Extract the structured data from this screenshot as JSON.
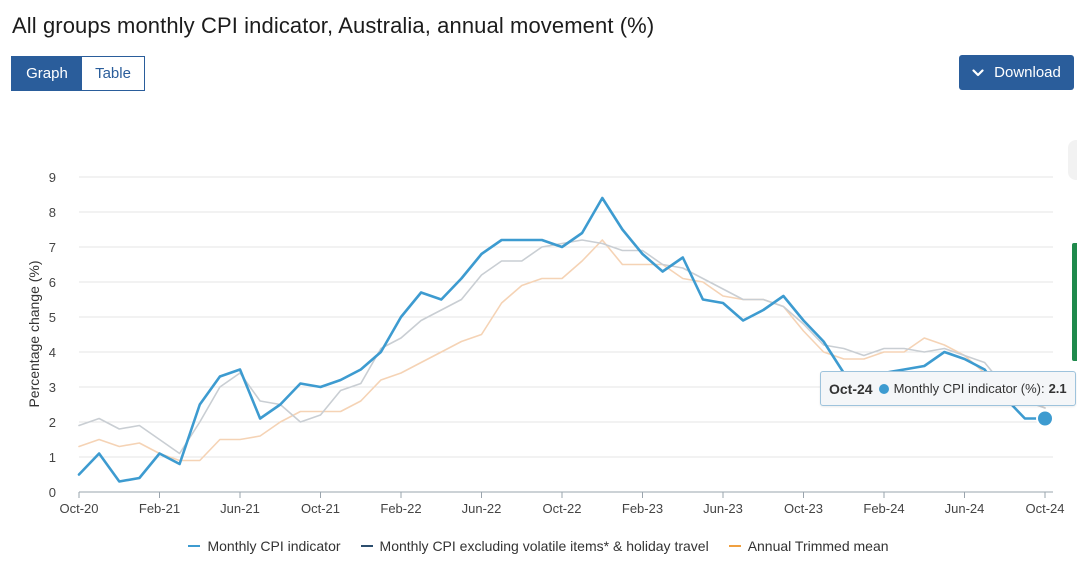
{
  "page": {
    "title": "All groups monthly CPI indicator, Australia, annual movement (%)"
  },
  "view_toggle": {
    "graph_label": "Graph",
    "table_label": "Table",
    "active": "Graph"
  },
  "download": {
    "label": "Download",
    "icon": "chevron-down-icon"
  },
  "tooltip": {
    "x": "Oct-24",
    "series": "Monthly CPI indicator (%):",
    "value": "2.1"
  },
  "colors": {
    "cpi": "#3d9bd0",
    "excl": "#c9ced3",
    "trimmed": "#f5d3b5",
    "accent": "#2a5d9b",
    "legend_cpi": "#3d9bd0",
    "legend_excl": "#2c4e6e",
    "legend_trimmed": "#f0a040"
  },
  "chart_data": {
    "type": "line",
    "title": "All groups monthly CPI indicator, Australia, annual movement (%)",
    "ylabel": "Percentage change (%)",
    "xlabel": "",
    "ylim": [
      0,
      9
    ],
    "yticks": [
      0,
      1,
      2,
      3,
      4,
      5,
      6,
      7,
      8,
      9
    ],
    "grid": true,
    "legend_position": "bottom",
    "x": [
      "Oct-20",
      "Nov-20",
      "Dec-20",
      "Jan-21",
      "Feb-21",
      "Mar-21",
      "Apr-21",
      "May-21",
      "Jun-21",
      "Jul-21",
      "Aug-21",
      "Sep-21",
      "Oct-21",
      "Nov-21",
      "Dec-21",
      "Jan-22",
      "Feb-22",
      "Mar-22",
      "Apr-22",
      "May-22",
      "Jun-22",
      "Jul-22",
      "Aug-22",
      "Sep-22",
      "Oct-22",
      "Nov-22",
      "Dec-22",
      "Jan-23",
      "Feb-23",
      "Mar-23",
      "Apr-23",
      "May-23",
      "Jun-23",
      "Jul-23",
      "Aug-23",
      "Sep-23",
      "Oct-23",
      "Nov-23",
      "Dec-23",
      "Jan-24",
      "Feb-24",
      "Mar-24",
      "Apr-24",
      "May-24",
      "Jun-24",
      "Jul-24",
      "Aug-24",
      "Sep-24",
      "Oct-24"
    ],
    "xticks": [
      "Oct-20",
      "Feb-21",
      "Jun-21",
      "Oct-21",
      "Feb-22",
      "Jun-22",
      "Oct-22",
      "Feb-23",
      "Jun-23",
      "Oct-23",
      "Feb-24",
      "Jun-24",
      "Oct-24"
    ],
    "series": [
      {
        "name": "Monthly CPI indicator",
        "values": [
          0.5,
          1.1,
          0.3,
          0.4,
          1.1,
          0.8,
          2.5,
          3.3,
          3.5,
          2.1,
          2.5,
          3.1,
          3.0,
          3.2,
          3.5,
          4.0,
          5.0,
          5.7,
          5.5,
          6.1,
          6.8,
          7.2,
          7.2,
          7.2,
          7.0,
          7.4,
          8.4,
          7.5,
          6.8,
          6.3,
          6.7,
          5.5,
          5.4,
          4.9,
          5.2,
          5.6,
          4.9,
          4.3,
          3.4,
          3.4,
          3.4,
          3.5,
          3.6,
          4.0,
          3.8,
          3.5,
          2.7,
          2.1,
          2.1
        ]
      },
      {
        "name": "Monthly CPI excluding volatile items* & holiday travel",
        "values": [
          1.9,
          2.1,
          1.8,
          1.9,
          1.5,
          1.1,
          2.0,
          3.0,
          3.4,
          2.6,
          2.5,
          2.0,
          2.2,
          2.9,
          3.1,
          4.1,
          4.4,
          4.9,
          5.2,
          5.5,
          6.2,
          6.6,
          6.6,
          7.0,
          7.1,
          7.2,
          7.1,
          6.9,
          6.9,
          6.5,
          6.4,
          6.1,
          5.8,
          5.5,
          5.5,
          5.3,
          4.8,
          4.2,
          4.1,
          3.9,
          4.1,
          4.1,
          4.0,
          4.1,
          3.9,
          3.7,
          3.0,
          2.6,
          2.4
        ]
      },
      {
        "name": "Annual Trimmed mean",
        "values": [
          1.3,
          1.5,
          1.3,
          1.4,
          1.1,
          0.9,
          0.9,
          1.5,
          1.5,
          1.6,
          2.0,
          2.3,
          2.3,
          2.3,
          2.6,
          3.2,
          3.4,
          3.7,
          4.0,
          4.3,
          4.5,
          5.4,
          5.9,
          6.1,
          6.1,
          6.6,
          7.2,
          6.5,
          6.5,
          6.5,
          6.1,
          6.0,
          5.6,
          5.5,
          5.5,
          5.3,
          4.6,
          4.0,
          3.8,
          3.8,
          4.0,
          4.0,
          4.4,
          4.2,
          3.9,
          3.4,
          3.2,
          2.7,
          2.4
        ]
      }
    ],
    "highlight": {
      "series_index": 0,
      "x": "Oct-24",
      "value": 2.1
    }
  }
}
